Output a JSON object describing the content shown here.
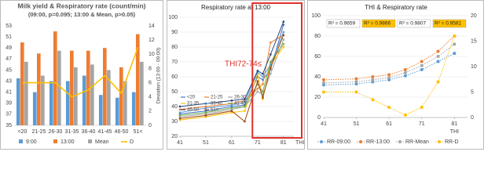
{
  "chart_data": [
    {
      "type": "bar",
      "title": "Milk yield & Respiratory rate (count/min)",
      "subtitle": "(09:00, p=0.095; 13:00 & Mean, p>0.05)",
      "y2_label": "Deviation (13:00 - 09:00)",
      "categories": [
        "<20",
        "21-25",
        "26-30",
        "31-35",
        "36-40",
        "41-45",
        "46-50",
        "51<"
      ],
      "series": [
        {
          "name": "9:00",
          "color": "#5b9bd5",
          "values": [
            43.5,
            41,
            43,
            43,
            44,
            40.5,
            40,
            41
          ]
        },
        {
          "name": "13:00",
          "color": "#ed7d31",
          "values": [
            50,
            48,
            52,
            48.5,
            48.5,
            49,
            45.5,
            51.5
          ]
        },
        {
          "name": "Mean",
          "color": "#a5a5a5",
          "values": [
            46.5,
            44,
            48.5,
            45.5,
            46,
            45,
            43,
            46.5
          ]
        },
        {
          "name": "D",
          "color": "#ffc000",
          "type": "line",
          "axis": "y2",
          "values": [
            6,
            6,
            6,
            4,
            5,
            7,
            4.5,
            11
          ]
        }
      ],
      "ylim": [
        35,
        53
      ],
      "yticks": [
        35,
        37,
        39,
        41,
        43,
        45,
        47,
        49,
        51,
        53
      ],
      "y2lim": [
        0,
        14
      ],
      "y2ticks": [
        0,
        2,
        4,
        6,
        8,
        10,
        12,
        14
      ],
      "grid": false
    },
    {
      "type": "line",
      "title": "Respiratory rate at 13:00",
      "x_label": "THI",
      "annotation": "THI72-74≤",
      "x": [
        41,
        51,
        61,
        66,
        71,
        73,
        76,
        81
      ],
      "series": [
        {
          "name": "<20",
          "color": "#4472c4",
          "values": [
            35,
            37,
            40,
            41,
            60,
            58,
            65,
            95
          ]
        },
        {
          "name": "21-25",
          "color": "#ed7d31",
          "values": [
            38,
            40,
            42,
            44,
            52,
            55,
            83,
            88
          ]
        },
        {
          "name": "26-30",
          "color": "#a5a5a5",
          "values": [
            33,
            35,
            38,
            40,
            50,
            48,
            62,
            85
          ]
        },
        {
          "name": "31-35",
          "color": "#ffc000",
          "values": [
            31,
            33,
            36,
            37,
            62,
            45,
            68,
            80
          ]
        },
        {
          "name": "36-40",
          "color": "#5b9bd5",
          "values": [
            36,
            39,
            41,
            43,
            63,
            60,
            68,
            90
          ]
        },
        {
          "name": "41-45",
          "color": "#70ad47",
          "values": [
            34,
            36,
            39,
            40,
            55,
            50,
            70,
            82
          ]
        },
        {
          "name": "46-50",
          "color": "#264478",
          "values": [
            40,
            42,
            44,
            45,
            64,
            62,
            75,
            97
          ]
        },
        {
          "name": "51<",
          "color": "#9e480e",
          "values": [
            32,
            34,
            37,
            30,
            57,
            46,
            66,
            88
          ]
        }
      ],
      "xlim": [
        41,
        85
      ],
      "xticks": [
        41,
        51,
        61,
        71,
        81
      ],
      "ylim": [
        20,
        100
      ],
      "yticks": [
        20,
        30,
        40,
        50,
        60,
        70,
        80,
        90,
        100
      ],
      "grid": true,
      "highlight_color": "#e0302a"
    },
    {
      "type": "scatter",
      "title": "THI & Respiratory rate",
      "x_label": "THI",
      "x": [
        41,
        51,
        56,
        61,
        66,
        71,
        76,
        81
      ],
      "series": [
        {
          "name": "RR-09:00",
          "color": "#5b9bd5",
          "values": [
            32,
            33,
            35,
            37,
            41,
            47,
            55,
            63
          ]
        },
        {
          "name": "RR-13:00",
          "color": "#ed7d31",
          "values": [
            37,
            38,
            40,
            42,
            47,
            55,
            65,
            80
          ]
        },
        {
          "name": "RR-Mean",
          "color": "#a5a5a5",
          "values": [
            34,
            35,
            37,
            39,
            44,
            51,
            60,
            72
          ]
        },
        {
          "name": "RR-D",
          "color": "#ffc000",
          "axis": "y2",
          "values": [
            5,
            5,
            3.5,
            2,
            0.5,
            2,
            7,
            16
          ]
        }
      ],
      "r2_labels": [
        {
          "text": "R² = 0.9659",
          "background": "#ffffff"
        },
        {
          "text": "R² = 0.9866",
          "background": "#ffc000"
        },
        {
          "text": "R² = 0.9807",
          "background": "#ffffff"
        },
        {
          "text": "R² = 0.9581",
          "background": "#ffc000"
        }
      ],
      "xlim": [
        41,
        85
      ],
      "xticks": [
        41,
        51,
        61,
        71,
        81
      ],
      "ylim": [
        0,
        100
      ],
      "yticks": [
        0,
        20,
        40,
        60,
        80,
        100
      ],
      "y2lim": [
        0,
        20
      ],
      "y2ticks": [
        0,
        5,
        10,
        15,
        20
      ],
      "grid": true
    }
  ]
}
